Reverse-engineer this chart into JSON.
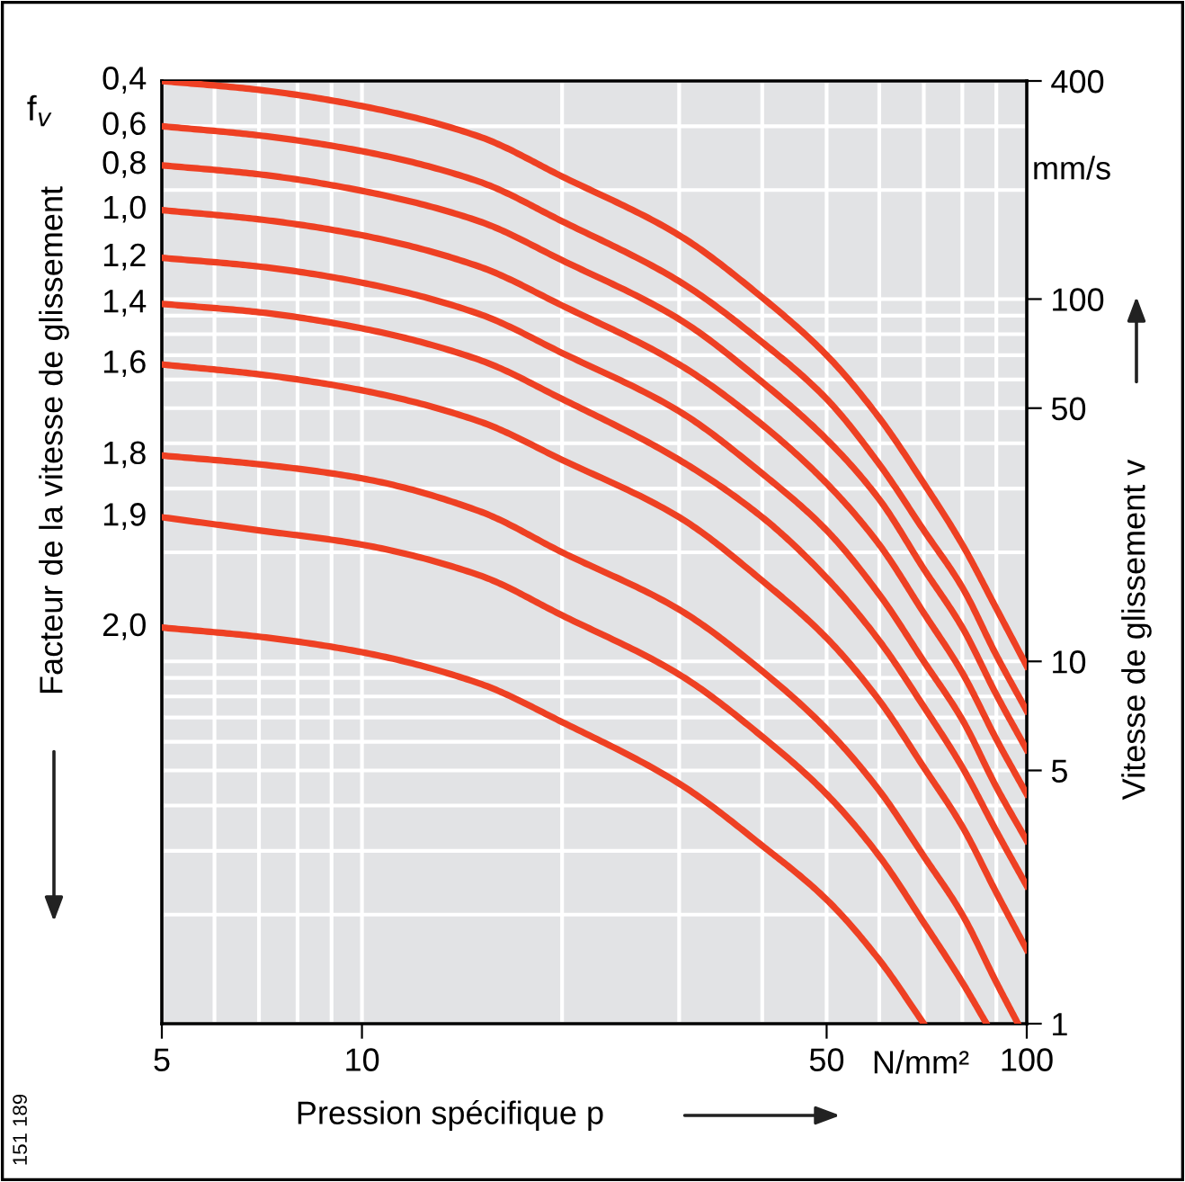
{
  "chart_data": {
    "type": "line",
    "xlabel": "Pression spécifique p",
    "ylabel": "Facteur de la vitesse de glissement",
    "y2label": "Vitesse de glissement v",
    "annotations": [
      "f$_{v}$",
      "mm/s",
      "N/mm²",
      "151 189"
    ],
    "log": "xy",
    "xlim": [
      5,
      100
    ],
    "xticks": [
      5,
      10,
      50,
      100
    ],
    "ylim": [
      1,
      400
    ],
    "yticks": [
      1,
      5,
      10,
      50,
      100,
      400
    ],
    "grid": true,
    "marker": "none",
    "line_style": "solid",
    "x": [
      5,
      7,
      10,
      15,
      20,
      30,
      40,
      50,
      60,
      70,
      80,
      90,
      100
    ],
    "series": [
      {
        "name": "0,4",
        "color": "#ee4023",
        "values": [
          400,
          378,
          341,
          281,
          218,
          150,
          101,
          70,
          47,
          31,
          21,
          14,
          9.7
        ]
      },
      {
        "name": "0,6",
        "color": "#ee4023",
        "values": [
          300,
          283,
          256,
          211,
          164,
          112,
          76,
          53,
          35,
          23,
          16,
          10.4,
          7.3
        ]
      },
      {
        "name": "0,8",
        "color": "#ee4023",
        "values": [
          234,
          221,
          199,
          164,
          128,
          88,
          59,
          41,
          28,
          18,
          12.4,
          8.1,
          5.7
        ]
      },
      {
        "name": "1,0",
        "color": "#ee4023",
        "values": [
          176,
          166,
          150,
          123,
          96,
          66,
          45,
          31,
          21,
          13.6,
          9.3,
          6.1,
          4.3
        ]
      },
      {
        "name": "1,2",
        "color": "#ee4023",
        "values": [
          130,
          123,
          111,
          91,
          71,
          49,
          33,
          23,
          15.3,
          10,
          6.9,
          4.5,
          3.2
        ]
      },
      {
        "name": "1,4",
        "color": "#ee4023",
        "values": [
          97,
          92,
          83,
          68,
          53,
          36,
          25,
          17,
          11.4,
          7.5,
          5.1,
          3.4,
          2.4
        ]
      },
      {
        "name": "1,6",
        "color": "#ee4023",
        "values": [
          66,
          62,
          56,
          46,
          36,
          25,
          16.7,
          11.6,
          7.8,
          5.1,
          3.5,
          2.3,
          1.6
        ]
      },
      {
        "name": "1,8",
        "color": "#ee4023",
        "x": [
          5,
          7,
          10,
          15,
          20,
          30,
          40,
          50,
          60,
          70,
          80,
          90,
          97
        ],
        "values": [
          37,
          35,
          32,
          26,
          20,
          13.9,
          9.4,
          6.5,
          4.4,
          2.9,
          2.0,
          1.3,
          1
        ]
      },
      {
        "name": "1,9",
        "color": "#ee4023",
        "x": [
          5,
          7,
          10,
          15,
          20,
          30,
          40,
          50,
          60,
          70,
          80,
          87
        ],
        "values": [
          25,
          23,
          21,
          17.3,
          13.4,
          9.2,
          6.2,
          4.3,
          2.9,
          1.9,
          1.3,
          1
        ]
      },
      {
        "name": "2,0",
        "color": "#ee4023",
        "x": [
          5,
          7,
          10,
          15,
          20,
          30,
          40,
          50,
          60,
          70
        ],
        "values": [
          12.4,
          11.7,
          10.6,
          8.7,
          6.8,
          4.6,
          3.1,
          2.2,
          1.5,
          1
        ]
      }
    ]
  }
}
